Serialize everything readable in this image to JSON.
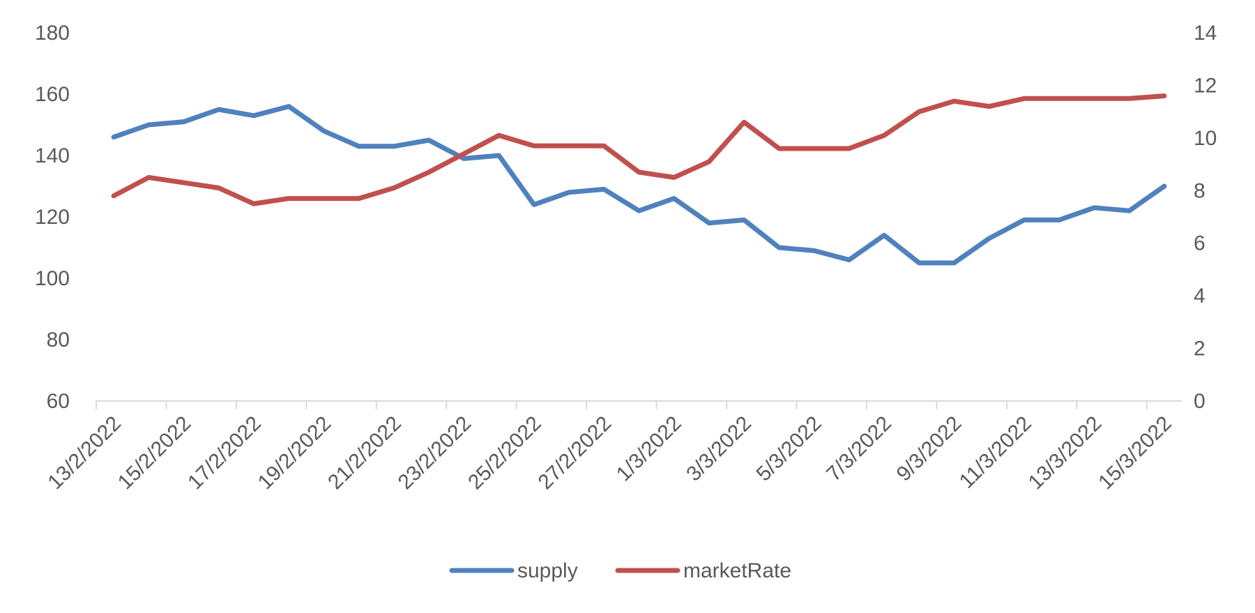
{
  "chart_data": {
    "type": "line",
    "x": [
      "13/2/2022",
      "14/2/2022",
      "15/2/2022",
      "16/2/2022",
      "17/2/2022",
      "18/2/2022",
      "19/2/2022",
      "20/2/2022",
      "21/2/2022",
      "22/2/2022",
      "23/2/2022",
      "24/2/2022",
      "25/2/2022",
      "26/2/2022",
      "27/2/2022",
      "28/2/2022",
      "1/3/2022",
      "2/3/2022",
      "3/3/2022",
      "4/3/2022",
      "5/3/2022",
      "6/3/2022",
      "7/3/2022",
      "8/3/2022",
      "9/3/2022",
      "10/3/2022",
      "11/3/2022",
      "12/3/2022",
      "13/3/2022",
      "14/3/2022",
      "15/3/2022"
    ],
    "x_tick_labels": [
      "13/2/2022",
      "15/2/2022",
      "17/2/2022",
      "19/2/2022",
      "21/2/2022",
      "23/2/2022",
      "25/2/2022",
      "27/2/2022",
      "1/3/2022",
      "3/3/2022",
      "5/3/2022",
      "7/3/2022",
      "9/3/2022",
      "11/3/2022",
      "13/3/2022",
      "15/3/2022"
    ],
    "series": [
      {
        "name": "supply",
        "axis": "left",
        "color": "#4f81bd",
        "values": [
          146,
          150,
          151,
          155,
          153,
          156,
          148,
          143,
          143,
          145,
          139,
          140,
          124,
          128,
          129,
          122,
          126,
          118,
          119,
          110,
          109,
          106,
          114,
          105,
          105,
          113,
          119,
          119,
          123,
          122,
          130
        ]
      },
      {
        "name": "marketRate",
        "axis": "right",
        "color": "#c0504d",
        "values": [
          7.8,
          8.5,
          8.3,
          8.1,
          7.5,
          7.7,
          7.7,
          7.7,
          8.1,
          8.7,
          9.4,
          10.1,
          9.7,
          9.7,
          9.7,
          8.7,
          8.5,
          9.1,
          10.6,
          9.6,
          9.6,
          9.6,
          10.1,
          11.0,
          11.4,
          11.2,
          11.5,
          11.5,
          11.5,
          11.5,
          11.6
        ]
      }
    ],
    "y_left": {
      "min": 60,
      "max": 180,
      "ticks": [
        "60",
        "80",
        "100",
        "120",
        "140",
        "160",
        "180"
      ]
    },
    "y_right": {
      "min": 0,
      "max": 14,
      "ticks": [
        "0",
        "2",
        "4",
        "6",
        "8",
        "10",
        "12",
        "14"
      ]
    },
    "grid": false,
    "legend_position": "bottom",
    "title": "",
    "xlabel": "",
    "ylabel": ""
  }
}
